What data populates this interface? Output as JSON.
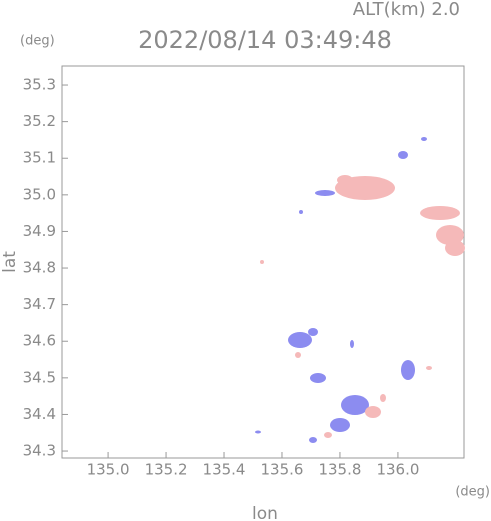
{
  "chart_data": {
    "type": "map",
    "title": "2022/08/14 03:49:48",
    "annotation": "ALT(km) 2.0",
    "y_unit": "(deg)",
    "x_unit": "(deg)",
    "xlabel": "lon",
    "ylabel": "lat",
    "xlim": [
      134.841,
      136.228
    ],
    "ylim": [
      34.281,
      35.352
    ],
    "xticks": [
      {
        "value": 135.0,
        "label": "135.0"
      },
      135.2,
      135.4,
      135.6,
      135.8,
      {
        "value": 136.0,
        "label": "136.0"
      }
    ],
    "yticks": [
      34.3,
      34.4,
      34.5,
      34.6,
      34.7,
      34.8,
      34.9,
      {
        "value": 35.0,
        "label": "35.0"
      },
      35.1,
      35.2,
      35.3
    ]
  }
}
